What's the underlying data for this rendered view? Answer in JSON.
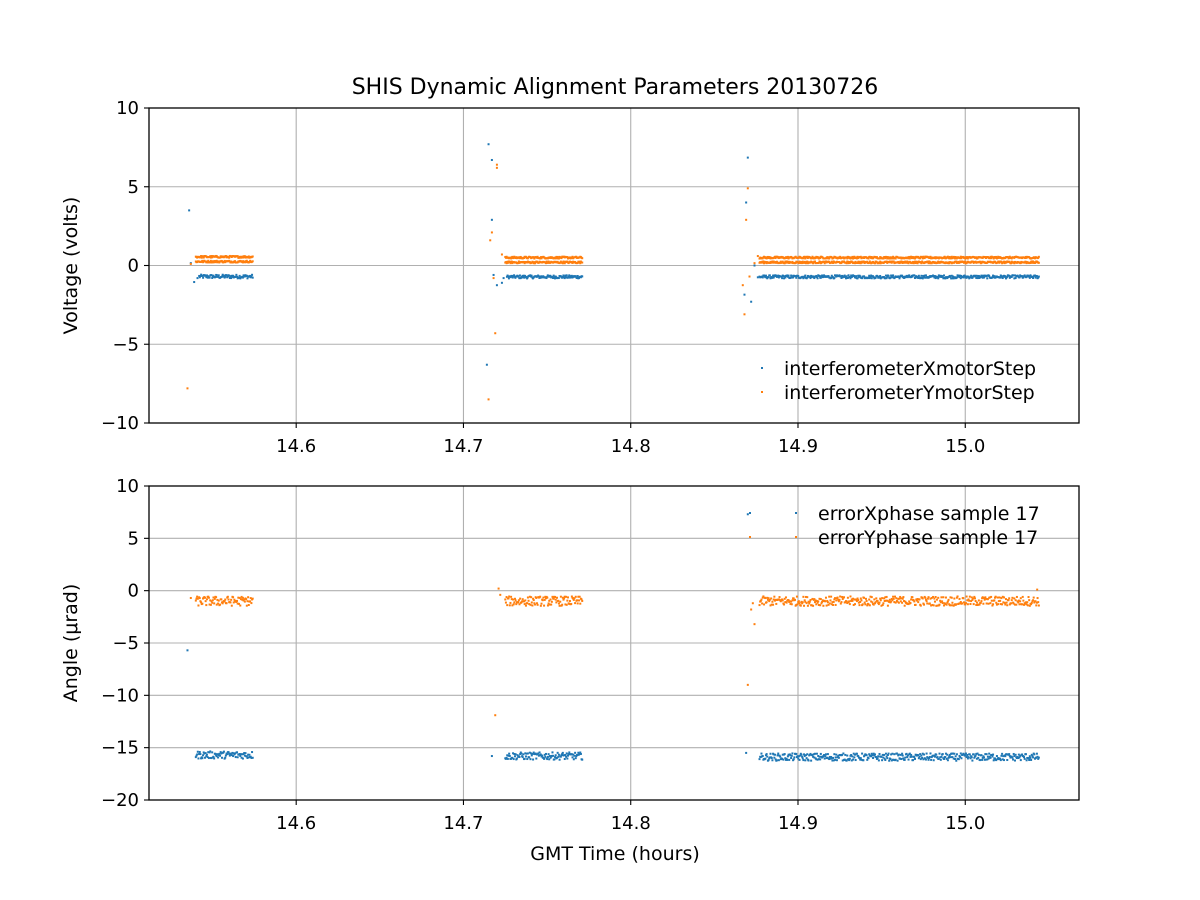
{
  "figure": {
    "title": "SHIS Dynamic Alignment Parameters 20130726",
    "xlabel": "GMT Time (hours)"
  },
  "chart_data": [
    {
      "type": "scatter",
      "ylabel": "Voltage (volts)",
      "xlim": [
        14.512,
        15.068
      ],
      "ylim": [
        -10,
        10
      ],
      "xticks": [
        14.6,
        14.7,
        14.8,
        14.9,
        15.0
      ],
      "xtick_labels": [
        "14.6",
        "14.7",
        "14.8",
        "14.9",
        "15.0"
      ],
      "yticks": [
        -10,
        -5,
        0,
        5,
        10
      ],
      "ytick_labels": [
        "−10",
        "−5",
        "0",
        "5",
        "10"
      ],
      "grid": true,
      "legend_position": "lower-right",
      "series": [
        {
          "name": "interferometerXmotorStep",
          "color": "#1f77b4",
          "points": [
            [
              14.536,
              3.5
            ],
            [
              14.537,
              0.15
            ],
            [
              14.539,
              -1.05
            ],
            [
              14.541,
              -0.8
            ],
            [
              14.714,
              -6.3
            ],
            [
              14.715,
              7.7
            ],
            [
              14.717,
              6.7
            ],
            [
              14.717,
              2.9
            ],
            [
              14.718,
              -0.6
            ],
            [
              14.72,
              -1.25
            ],
            [
              14.723,
              -1.1
            ],
            [
              14.724,
              -0.8
            ],
            [
              14.868,
              -1.85
            ],
            [
              14.869,
              4.0
            ],
            [
              14.87,
              6.85
            ],
            [
              14.872,
              -2.3
            ],
            [
              14.874,
              0.0
            ],
            [
              14.876,
              -0.75
            ]
          ],
          "segments": [
            {
              "x_start": 14.542,
              "x_end": 14.574,
              "y_center": -0.7,
              "y_spread": 0.12
            },
            {
              "x_start": 14.726,
              "x_end": 14.771,
              "y_center": -0.72,
              "y_spread": 0.1
            },
            {
              "x_start": 14.877,
              "x_end": 15.044,
              "y_center": -0.72,
              "y_spread": 0.1
            }
          ]
        },
        {
          "name": "interferometerYmotorStep",
          "color": "#ff7f0e",
          "points": [
            [
              14.535,
              -7.8
            ],
            [
              14.537,
              0.1
            ],
            [
              14.715,
              -8.5
            ],
            [
              14.716,
              1.6
            ],
            [
              14.717,
              2.1
            ],
            [
              14.718,
              -0.8
            ],
            [
              14.719,
              -4.3
            ],
            [
              14.72,
              6.4
            ],
            [
              14.72,
              6.2
            ],
            [
              14.723,
              0.7
            ],
            [
              14.867,
              -1.25
            ],
            [
              14.868,
              -3.1
            ],
            [
              14.869,
              2.9
            ],
            [
              14.87,
              4.9
            ],
            [
              14.871,
              -0.7
            ],
            [
              14.874,
              0.15
            ],
            [
              14.876,
              0.6
            ]
          ],
          "segments": [
            {
              "x_start": 14.54,
              "x_end": 14.574,
              "y_center": 0.55,
              "y_spread": 0.06
            },
            {
              "x_start": 14.54,
              "x_end": 14.574,
              "y_center": 0.25,
              "y_spread": 0.06
            },
            {
              "x_start": 14.725,
              "x_end": 14.771,
              "y_center": 0.5,
              "y_spread": 0.06
            },
            {
              "x_start": 14.725,
              "x_end": 14.771,
              "y_center": 0.2,
              "y_spread": 0.06
            },
            {
              "x_start": 14.877,
              "x_end": 15.044,
              "y_center": 0.5,
              "y_spread": 0.06
            },
            {
              "x_start": 14.877,
              "x_end": 15.044,
              "y_center": 0.2,
              "y_spread": 0.06
            }
          ]
        }
      ]
    },
    {
      "type": "scatter",
      "ylabel": "Angle (μrad)",
      "xlim": [
        14.512,
        15.068
      ],
      "ylim": [
        -20,
        10
      ],
      "xticks": [
        14.6,
        14.7,
        14.8,
        14.9,
        15.0
      ],
      "xtick_labels": [
        "14.6",
        "14.7",
        "14.8",
        "14.9",
        "15.0"
      ],
      "yticks": [
        -20,
        -15,
        -10,
        -5,
        0,
        5,
        10
      ],
      "ytick_labels": [
        "−20",
        "−15",
        "−10",
        "−5",
        "0",
        "5",
        "10"
      ],
      "grid": true,
      "legend_position": "upper-right",
      "series": [
        {
          "name": "errorXphase sample 17",
          "color": "#1f77b4",
          "points": [
            [
              14.535,
              -5.7
            ],
            [
              14.717,
              -15.8
            ],
            [
              14.869,
              -15.5
            ],
            [
              14.87,
              7.3
            ]
          ],
          "segments": [
            {
              "x_start": 14.54,
              "x_end": 14.574,
              "y_center": -15.7,
              "y_spread": 0.35
            },
            {
              "x_start": 14.725,
              "x_end": 14.771,
              "y_center": -15.8,
              "y_spread": 0.35
            },
            {
              "x_start": 14.877,
              "x_end": 15.044,
              "y_center": -15.9,
              "y_spread": 0.35
            }
          ]
        },
        {
          "name": "errorYphase sample 17",
          "color": "#ff7f0e",
          "points": [
            [
              14.537,
              -0.7
            ],
            [
              14.719,
              -11.9
            ],
            [
              14.721,
              0.2
            ],
            [
              14.722,
              -0.4
            ],
            [
              14.87,
              -9.0
            ],
            [
              14.872,
              -1.8
            ],
            [
              14.873,
              -1.2
            ],
            [
              14.874,
              -3.2
            ],
            [
              15.043,
              0.1
            ]
          ],
          "segments": [
            {
              "x_start": 14.54,
              "x_end": 14.574,
              "y_center": -1.0,
              "y_spread": 0.45
            },
            {
              "x_start": 14.725,
              "x_end": 14.771,
              "y_center": -1.0,
              "y_spread": 0.45
            },
            {
              "x_start": 14.877,
              "x_end": 15.044,
              "y_center": -1.0,
              "y_spread": 0.45
            }
          ]
        }
      ]
    }
  ]
}
